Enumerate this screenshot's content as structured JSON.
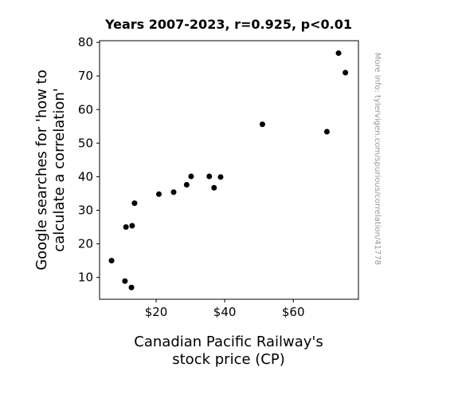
{
  "chart_data": {
    "type": "scatter",
    "title": "Years 2007-2023, r=0.925, p<0.01",
    "xlabel_lines": [
      "Canadian Pacific Railway's",
      "stock price (CP)"
    ],
    "ylabel_lines": [
      "Google searches for 'how to",
      "calculate a correlation'"
    ],
    "xlim": [
      3.5,
      79
    ],
    "ylim": [
      3.5,
      80.5
    ],
    "x_ticks": [
      {
        "value": 20,
        "label": "$20"
      },
      {
        "value": 40,
        "label": "$40"
      },
      {
        "value": 60,
        "label": "$60"
      }
    ],
    "y_ticks": [
      {
        "value": 10,
        "label": "10"
      },
      {
        "value": 20,
        "label": "20"
      },
      {
        "value": 30,
        "label": "30"
      },
      {
        "value": 40,
        "label": "40"
      },
      {
        "value": 50,
        "label": "50"
      },
      {
        "value": 60,
        "label": "60"
      },
      {
        "value": 70,
        "label": "70"
      },
      {
        "value": 80,
        "label": "80"
      }
    ],
    "points": [
      {
        "x": 7.0,
        "y": 15.0
      },
      {
        "x": 10.9,
        "y": 8.9
      },
      {
        "x": 11.2,
        "y": 25.0
      },
      {
        "x": 12.8,
        "y": 7.0
      },
      {
        "x": 13.0,
        "y": 25.4
      },
      {
        "x": 13.7,
        "y": 32.1
      },
      {
        "x": 20.8,
        "y": 34.8
      },
      {
        "x": 25.1,
        "y": 35.4
      },
      {
        "x": 28.9,
        "y": 37.6
      },
      {
        "x": 30.2,
        "y": 40.1
      },
      {
        "x": 35.5,
        "y": 40.1
      },
      {
        "x": 36.9,
        "y": 36.7
      },
      {
        "x": 38.8,
        "y": 39.9
      },
      {
        "x": 51.0,
        "y": 55.6
      },
      {
        "x": 69.8,
        "y": 53.4
      },
      {
        "x": 73.2,
        "y": 76.8
      },
      {
        "x": 75.2,
        "y": 71.0
      }
    ],
    "marker_color": "#000000",
    "grid": false,
    "watermark": "More info: tylervigen.com/spurious/correlation/41778"
  }
}
